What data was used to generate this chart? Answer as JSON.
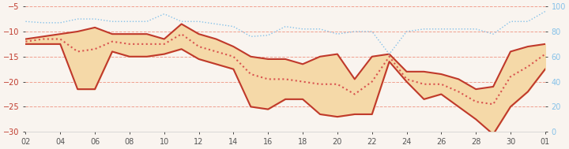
{
  "x_labels": [
    "02",
    "04",
    "06",
    "08",
    "10",
    "12",
    "14",
    "16",
    "18",
    "20",
    "22",
    "24",
    "26",
    "28",
    "30",
    "01"
  ],
  "x_positions": [
    1,
    3,
    5,
    7,
    9,
    11,
    13,
    15,
    17,
    19,
    21,
    23,
    25,
    27,
    29,
    31
  ],
  "days": [
    1,
    2,
    3,
    4,
    5,
    6,
    7,
    8,
    9,
    10,
    11,
    12,
    13,
    14,
    15,
    16,
    17,
    18,
    19,
    20,
    21,
    22,
    23,
    24,
    25,
    26,
    27,
    28,
    29,
    30,
    31
  ],
  "upper": [
    -11.5,
    -11.0,
    -10.5,
    -10.0,
    -9.2,
    -10.5,
    -10.5,
    -10.5,
    -11.5,
    -8.5,
    -10.5,
    -11.5,
    -13.0,
    -15.0,
    -15.5,
    -15.5,
    -16.5,
    -15.0,
    -14.5,
    -19.5,
    -15.0,
    -14.5,
    -18.0,
    -18.0,
    -18.5,
    -19.5,
    -21.5,
    -21.0,
    -14.0,
    -13.0,
    -12.5
  ],
  "lower": [
    -12.5,
    -12.5,
    -12.5,
    -21.5,
    -21.5,
    -14.0,
    -15.0,
    -15.0,
    -14.5,
    -13.5,
    -15.5,
    -16.5,
    -17.5,
    -25.0,
    -25.5,
    -23.5,
    -23.5,
    -26.5,
    -27.0,
    -26.5,
    -26.5,
    -16.0,
    -20.0,
    -23.5,
    -22.5,
    -25.0,
    -27.5,
    -30.5,
    -25.0,
    -22.0,
    -17.5
  ],
  "middle": [
    -12.0,
    -11.5,
    -11.5,
    -14.0,
    -13.5,
    -12.0,
    -12.5,
    -12.5,
    -12.5,
    -10.5,
    -13.0,
    -14.0,
    -15.0,
    -18.5,
    -19.5,
    -19.5,
    -20.0,
    -20.5,
    -20.5,
    -22.5,
    -20.0,
    -15.0,
    -19.5,
    -20.5,
    -20.5,
    -22.0,
    -24.0,
    -24.5,
    -19.0,
    -17.0,
    -14.5
  ],
  "humidity": [
    88,
    87,
    87,
    90,
    90,
    88,
    88,
    88,
    94,
    88,
    88,
    86,
    84,
    76,
    77,
    84,
    82,
    82,
    78,
    80,
    80,
    62,
    80,
    82,
    82,
    82,
    82,
    78,
    88,
    88,
    96
  ],
  "ylim_left": [
    -30,
    -5
  ],
  "ylim_right": [
    0,
    100
  ],
  "yticks_left": [
    -30,
    -25,
    -20,
    -15,
    -10,
    -5
  ],
  "yticks_right": [
    0,
    20,
    40,
    60,
    80,
    100
  ],
  "bg_color": "#f9f4ef",
  "fill_color": "#f5d9a8",
  "upper_line_color": "#c0392b",
  "lower_line_color": "#c0392b",
  "middle_line_color": "#d9534f",
  "humidity_line_color": "#85c1e9",
  "grid_color": "#f0a090",
  "tick_color_left": "#c0392b",
  "tick_color_right": "#85c1e9"
}
